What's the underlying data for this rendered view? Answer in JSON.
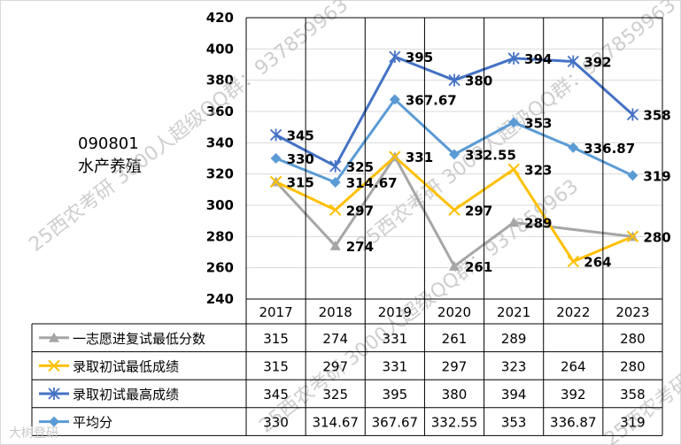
{
  "watermark": "25西农考研 3000人超级QQ群：937859963",
  "footer_mark": "大树登研",
  "chart_data": {
    "type": "line",
    "title": "",
    "subtitle_code": "090801",
    "subtitle_name": "水产养殖",
    "categories": [
      "2017",
      "2018",
      "2019",
      "2020",
      "2021",
      "2022",
      "2023"
    ],
    "ylim": [
      240,
      420
    ],
    "yticks": [
      240,
      260,
      280,
      300,
      320,
      340,
      360,
      380,
      400,
      420
    ],
    "grid": true,
    "legend": "table-below",
    "series": [
      {
        "name": "一志愿进复试最低分数",
        "color": "#a6a6a6",
        "marker": "triangle",
        "values": [
          315,
          274,
          331,
          261,
          289,
          null,
          280
        ]
      },
      {
        "name": "录取初试最低成绩",
        "color": "#ffc000",
        "marker": "x",
        "values": [
          315,
          297,
          331,
          297,
          323,
          264,
          280
        ]
      },
      {
        "name": "录取初试最高成绩",
        "color": "#4472c4",
        "marker": "star",
        "values": [
          345,
          325,
          395,
          380,
          394,
          392,
          358
        ]
      },
      {
        "name": "平均分",
        "color": "#5b9bd5",
        "marker": "diamond",
        "values": [
          330,
          314.67,
          367.67,
          332.55,
          353,
          336.87,
          319
        ]
      }
    ],
    "point_labels": [
      [
        "315",
        "274",
        "331",
        "261",
        "289",
        "",
        "280"
      ],
      [
        "",
        "297",
        "",
        "297",
        "323",
        "264",
        ""
      ],
      [
        "345",
        "325",
        "395",
        "380",
        "394",
        "392",
        "358"
      ],
      [
        "330",
        "314.67",
        "367.67",
        "332.55",
        "353",
        "336.87",
        "319"
      ]
    ],
    "table_rows": [
      [
        "315",
        "274",
        "331",
        "261",
        "289",
        "",
        "280"
      ],
      [
        "315",
        "297",
        "331",
        "297",
        "323",
        "264",
        "280"
      ],
      [
        "345",
        "325",
        "395",
        "380",
        "394",
        "392",
        "358"
      ],
      [
        "330",
        "314.67",
        "367.67",
        "332.55",
        "353",
        "336.87",
        "319"
      ]
    ]
  }
}
